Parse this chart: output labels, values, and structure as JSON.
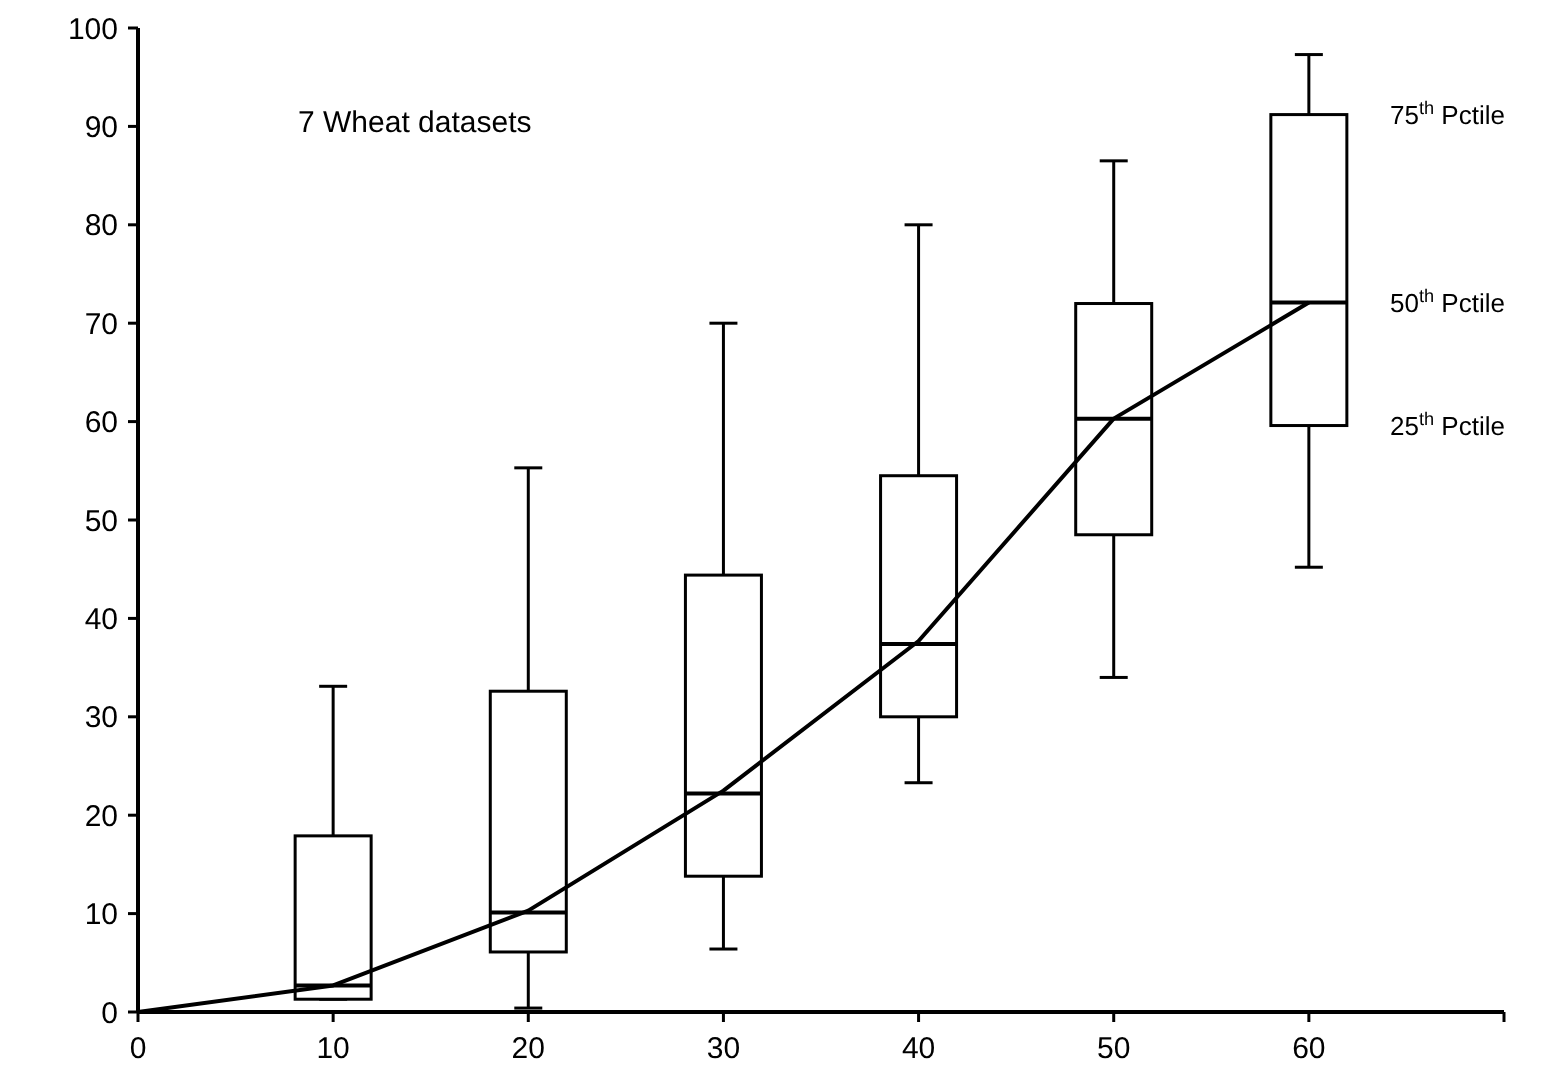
{
  "chart_data": {
    "type": "box",
    "annotations": [
      "7 Wheat datasets",
      "75$^{th}$ Pctile",
      "50$^{th}$ Pctile",
      "25$^{th}$ Pctile"
    ],
    "series": [
      {
        "color": "#000000",
        "x": [
          10,
          20,
          30,
          40,
          50,
          60
        ],
        "boxes": [
          {
            "low": 1.3,
            "q1": 1.3,
            "median": 2.7,
            "q3": 17.9,
            "high": 33.1
          },
          {
            "low": 0.4,
            "q1": 6.1,
            "median": 10.1,
            "q3": 32.6,
            "high": 55.3
          },
          {
            "low": 6.4,
            "q1": 13.8,
            "median": 22.2,
            "q3": 44.4,
            "high": 70.0
          },
          {
            "low": 23.3,
            "q1": 30.0,
            "median": 37.4,
            "q3": 54.5,
            "high": 80.0
          },
          {
            "low": 34.0,
            "q1": 48.5,
            "median": 60.3,
            "q3": 72.0,
            "high": 86.5
          },
          {
            "low": 45.2,
            "q1": 59.6,
            "median": 72.1,
            "q3": 91.2,
            "high": 97.3
          }
        ]
      },
      {
        "type": "line",
        "color": "#000000",
        "x": [
          0,
          10,
          20,
          30,
          40,
          50,
          60
        ],
        "values": [
          0,
          2.7,
          10.3,
          22.5,
          37.7,
          60.3,
          72.1
        ]
      }
    ],
    "marker": "none",
    "line_style": "solid",
    "grid": false,
    "xlim": [
      0,
      70
    ],
    "xticks": [
      0,
      10,
      20,
      30,
      40,
      50,
      60,
      {
        "value": 70,
        "label": null
      }
    ],
    "ylim": [
      0,
      100
    ],
    "yticks": [
      0,
      10,
      20,
      30,
      40,
      50,
      60,
      70,
      80,
      90,
      100
    ]
  }
}
